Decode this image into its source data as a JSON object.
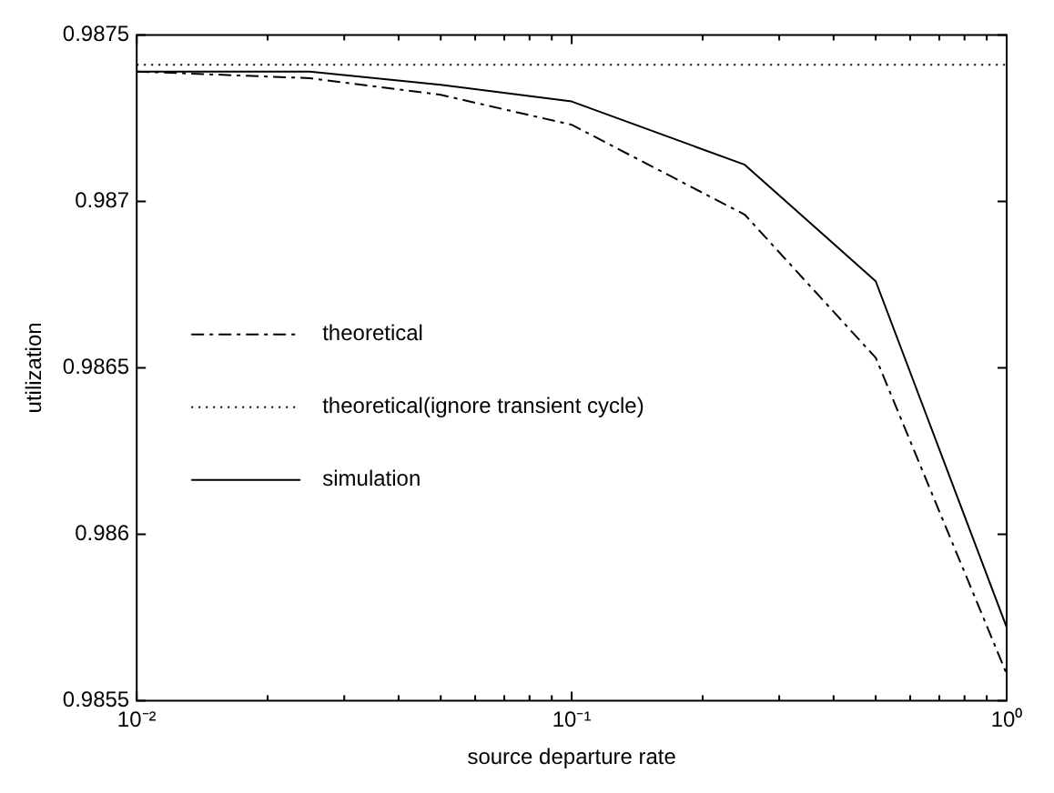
{
  "chart_data": {
    "type": "line",
    "xlabel": "source departure rate",
    "ylabel": "utilization",
    "log": "x",
    "legend": "left",
    "grid": false,
    "marker": "none",
    "xlim": [
      0.01,
      1
    ],
    "xticks": [
      {
        "value": 0.01,
        "label": "10⁻²"
      },
      {
        "value": 0.02,
        "label": null
      },
      {
        "value": 0.03,
        "label": null
      },
      {
        "value": 0.04,
        "label": null
      },
      {
        "value": 0.05,
        "label": null
      },
      {
        "value": 0.06,
        "label": null
      },
      {
        "value": 0.07,
        "label": null
      },
      {
        "value": 0.08,
        "label": null
      },
      {
        "value": 0.09,
        "label": null
      },
      {
        "value": 0.1,
        "label": "10⁻¹"
      },
      {
        "value": 0.2,
        "label": null
      },
      {
        "value": 0.3,
        "label": null
      },
      {
        "value": 0.4,
        "label": null
      },
      {
        "value": 0.5,
        "label": null
      },
      {
        "value": 0.6,
        "label": null
      },
      {
        "value": 0.7,
        "label": null
      },
      {
        "value": 0.8,
        "label": null
      },
      {
        "value": 0.9,
        "label": null
      },
      {
        "value": 1,
        "label": "10⁰"
      }
    ],
    "ylim": [
      0.9855,
      0.9875
    ],
    "yticks": [
      0.9855,
      0.986,
      0.9865,
      0.987,
      0.9875
    ],
    "x": [
      0.01,
      0.025,
      0.05,
      0.1,
      0.25,
      0.5,
      1
    ],
    "series": [
      {
        "name": "theoretical",
        "color": "#000000",
        "line_style": "dashed",
        "values": [
          0.98739,
          0.98737,
          0.98732,
          0.98723,
          0.98696,
          0.98653,
          0.98558
        ]
      },
      {
        "name": "theoretical(ignore transient cycle)",
        "color": "#000000",
        "line_style": "dotted",
        "values": [
          0.98741,
          0.98741,
          0.98741,
          0.98741,
          0.98741,
          0.98741,
          0.98741
        ]
      },
      {
        "name": "simulation",
        "color": "#000000",
        "line_style": "solid",
        "values": [
          0.98739,
          0.98739,
          0.98735,
          0.9873,
          0.98711,
          0.98676,
          0.98572
        ]
      }
    ]
  }
}
